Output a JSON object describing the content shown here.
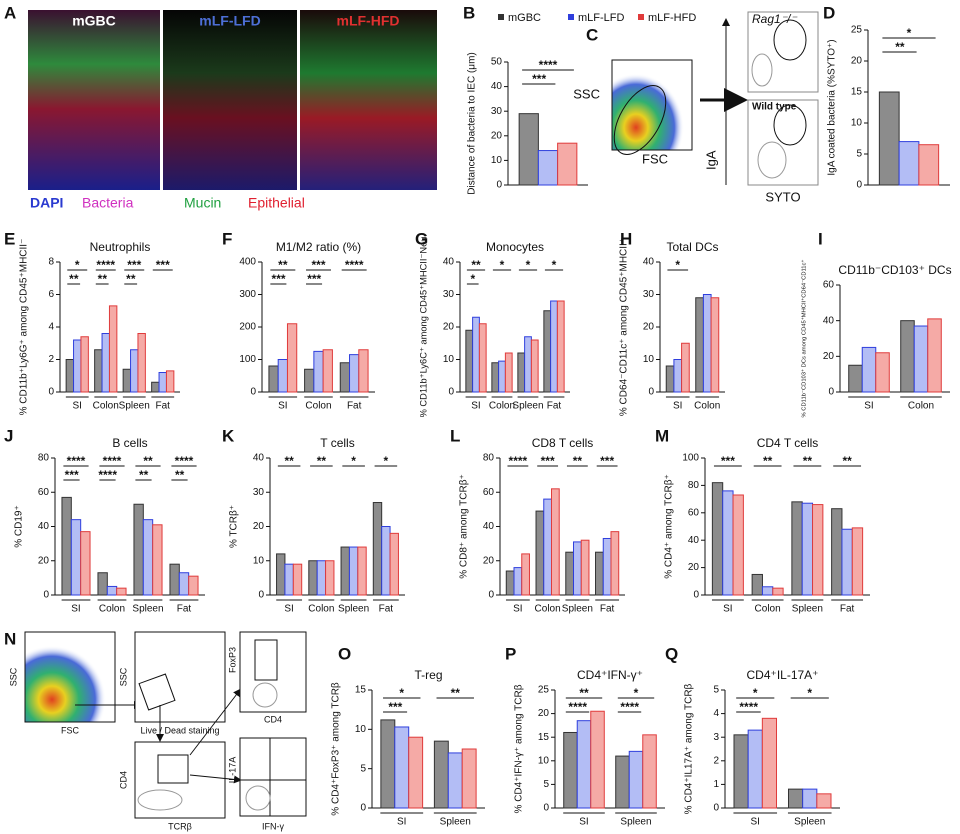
{
  "figure": {
    "A": {
      "letter": "A",
      "labels": [
        "mGBC",
        "mLF-LFD",
        "mLF-HFD"
      ],
      "stains": [
        "DAPI",
        "Bacteria",
        "Mucin",
        "Epithelial"
      ]
    },
    "C": {
      "letter": "C",
      "labels": [
        "SSC",
        "FSC",
        "Rag1⁻/⁻",
        "Wild type",
        "IgA",
        "SYTO"
      ]
    },
    "N": {
      "letter": "N",
      "labels": [
        "SSC",
        "FSC",
        "SSC",
        "Live / Dead staining",
        "FoxP3",
        "CD4",
        "CD4",
        "TCRβ",
        "IL-17A",
        "IFN-γ"
      ]
    }
  },
  "chart_data": [
    {
      "type": "bar",
      "panel": "B",
      "y_label": "Distance of bacteria to IEC (μm)",
      "categories": [
        null
      ],
      "legend": true,
      "series": [
        {
          "name": "mGBC",
          "color": "#8c8c8c",
          "values": [
            29
          ]
        },
        {
          "name": "mLF-LFD",
          "color": "#b3bdf5",
          "values": [
            14
          ]
        },
        {
          "name": "mLF-HFD",
          "color": "#f5aaa6",
          "values": [
            17
          ]
        }
      ],
      "ylim": [
        0,
        50
      ],
      "yticks": [
        0,
        10,
        20,
        30,
        40,
        50
      ],
      "annotations": [
        "****",
        "***"
      ]
    },
    {
      "type": "bar",
      "panel": "D",
      "y_label": "IgA coated bacteria (%SYTO⁺)",
      "categories": [
        null
      ],
      "series": [
        {
          "color": "#8c8c8c",
          "values": [
            15
          ]
        },
        {
          "color": "#b3bdf5",
          "values": [
            7
          ]
        },
        {
          "color": "#f5aaa6",
          "values": [
            6.5
          ]
        }
      ],
      "ylim": [
        0,
        25
      ],
      "yticks": [
        0,
        5,
        10,
        15,
        20,
        25
      ],
      "annotations": [
        "*",
        "**"
      ]
    },
    {
      "type": "bar",
      "panel": "E",
      "title": "Neutrophils",
      "y_label": "% CD11b⁺Ly6G⁺ among CD45⁺MHCII⁻",
      "categories": [
        "SI",
        "Colon",
        "Spleen",
        "Fat"
      ],
      "series": [
        {
          "color": "#8c8c8c",
          "values": [
            2,
            2.6,
            1.4,
            0.6
          ]
        },
        {
          "color": "#b3bdf5",
          "values": [
            3.2,
            3.6,
            2.6,
            1.2
          ]
        },
        {
          "color": "#f5aaa6",
          "values": [
            3.4,
            5.3,
            3.6,
            1.3
          ]
        }
      ],
      "ylim": [
        0,
        8
      ],
      "yticks": [
        0,
        2,
        4,
        6,
        8
      ],
      "annotations": [
        "*",
        "**",
        "****",
        "**",
        "***",
        "**",
        "***"
      ]
    },
    {
      "type": "bar",
      "panel": "F",
      "title": "M1/M2 ratio (%)",
      "categories": [
        "SI",
        "Colon",
        "Fat"
      ],
      "series": [
        {
          "color": "#8c8c8c",
          "values": [
            80,
            70,
            90
          ]
        },
        {
          "color": "#b3bdf5",
          "values": [
            100,
            125,
            115
          ]
        },
        {
          "color": "#f5aaa6",
          "values": [
            210,
            130,
            130
          ]
        }
      ],
      "ylim": [
        0,
        400
      ],
      "yticks": [
        0,
        100,
        200,
        300,
        400
      ],
      "annotations": [
        "**",
        "***",
        "***",
        "***",
        "****"
      ]
    },
    {
      "type": "bar",
      "panel": "G",
      "title": "Monocytes",
      "y_label": "% CD11b⁺Ly6C⁺ among CD45⁺MHCII⁻Neu",
      "categories": [
        "SI",
        "Colon",
        "Spleen",
        "Fat"
      ],
      "series": [
        {
          "color": "#8c8c8c",
          "values": [
            19,
            9,
            12,
            25
          ]
        },
        {
          "color": "#b3bdf5",
          "values": [
            23,
            9.5,
            17,
            28
          ]
        },
        {
          "color": "#f5aaa6",
          "values": [
            21,
            12,
            16,
            28
          ]
        }
      ],
      "ylim": [
        0,
        40
      ],
      "yticks": [
        0,
        10,
        20,
        30,
        40
      ],
      "annotations": [
        "**",
        "*",
        "*",
        "*",
        "*"
      ]
    },
    {
      "type": "bar",
      "panel": "H",
      "title": "Total DCs",
      "y_label": "% CD64⁻CD11c⁺ among CD45⁺MHCII⁺",
      "categories": [
        "SI",
        "Colon"
      ],
      "series": [
        {
          "color": "#8c8c8c",
          "values": [
            8,
            29
          ]
        },
        {
          "color": "#b3bdf5",
          "values": [
            10,
            30
          ]
        },
        {
          "color": "#f5aaa6",
          "values": [
            15,
            29
          ]
        }
      ],
      "ylim": [
        0,
        40
      ],
      "yticks": [
        0,
        10,
        20,
        30,
        40
      ],
      "annotations": [
        "*"
      ]
    },
    {
      "type": "bar",
      "panel": "I",
      "title": "CD11b⁻CD103⁺ DCs",
      "y_label": "% CD11b⁻CD103⁺ DCs among CD45⁺MHCII⁺CD64⁻CD11c⁺",
      "categories": [
        "SI",
        "Colon"
      ],
      "series": [
        {
          "color": "#8c8c8c",
          "values": [
            15,
            40
          ]
        },
        {
          "color": "#b3bdf5",
          "values": [
            25,
            37
          ]
        },
        {
          "color": "#f5aaa6",
          "values": [
            22,
            41
          ]
        }
      ],
      "ylim": [
        0,
        60
      ],
      "yticks": [
        0,
        20,
        40,
        60
      ],
      "annotations": []
    },
    {
      "type": "bar",
      "panel": "J",
      "title": "B cells",
      "y_label": "% CD19⁺",
      "categories": [
        "SI",
        "Colon",
        "Spleen",
        "Fat"
      ],
      "series": [
        {
          "color": "#8c8c8c",
          "values": [
            57,
            13,
            53,
            18
          ]
        },
        {
          "color": "#b3bdf5",
          "values": [
            44,
            5,
            44,
            13
          ]
        },
        {
          "color": "#f5aaa6",
          "values": [
            37,
            4,
            41,
            11
          ]
        }
      ],
      "ylim": [
        0,
        80
      ],
      "yticks": [
        0,
        20,
        40,
        60,
        80
      ],
      "annotations": [
        "****",
        "***",
        "****",
        "****",
        "**",
        "**",
        "****",
        "**"
      ]
    },
    {
      "type": "bar",
      "panel": "K",
      "title": "T cells",
      "y_label": "% TCRβ⁺",
      "categories": [
        "SI",
        "Colon",
        "Spleen",
        "Fat"
      ],
      "series": [
        {
          "color": "#8c8c8c",
          "values": [
            12,
            10,
            14,
            27
          ]
        },
        {
          "color": "#b3bdf5",
          "values": [
            9,
            10,
            14,
            20
          ]
        },
        {
          "color": "#f5aaa6",
          "values": [
            9,
            10,
            14,
            18
          ]
        }
      ],
      "ylim": [
        0,
        40
      ],
      "yticks": [
        0,
        10,
        20,
        30,
        40
      ],
      "annotations": [
        "**",
        "**",
        "*",
        "*"
      ]
    },
    {
      "type": "bar",
      "panel": "L",
      "title": "CD8 T cells",
      "y_label": "% CD8⁺ among TCRβ⁺",
      "categories": [
        "SI",
        "Colon",
        "Spleen",
        "Fat"
      ],
      "series": [
        {
          "color": "#8c8c8c",
          "values": [
            14,
            49,
            25,
            25
          ]
        },
        {
          "color": "#b3bdf5",
          "values": [
            16,
            56,
            31,
            33
          ]
        },
        {
          "color": "#f5aaa6",
          "values": [
            24,
            62,
            32,
            37
          ]
        }
      ],
      "ylim": [
        0,
        80
      ],
      "yticks": [
        0,
        20,
        40,
        60,
        80
      ],
      "annotations": [
        "****",
        "***",
        "**",
        "***"
      ]
    },
    {
      "type": "bar",
      "panel": "M",
      "title": "CD4 T cells",
      "y_label": "% CD4⁺ among TCRβ⁺",
      "categories": [
        "SI",
        "Colon",
        "Spleen",
        "Fat"
      ],
      "series": [
        {
          "color": "#8c8c8c",
          "values": [
            82,
            15,
            68,
            63
          ]
        },
        {
          "color": "#b3bdf5",
          "values": [
            76,
            6,
            67,
            48
          ]
        },
        {
          "color": "#f5aaa6",
          "values": [
            73,
            5,
            66,
            49
          ]
        }
      ],
      "ylim": [
        0,
        100
      ],
      "yticks": [
        0,
        20,
        40,
        60,
        80,
        100
      ],
      "annotations": [
        "***",
        "**",
        "**",
        "**"
      ]
    },
    {
      "type": "bar",
      "panel": "O",
      "title": "T-reg",
      "y_label": "% CD4⁺FoxP3⁺ among TCRβ",
      "categories": [
        "SI",
        "Spleen"
      ],
      "series": [
        {
          "color": "#8c8c8c",
          "values": [
            11.2,
            8.5
          ]
        },
        {
          "color": "#b3bdf5",
          "values": [
            10.3,
            7
          ]
        },
        {
          "color": "#f5aaa6",
          "values": [
            9,
            7.5
          ]
        }
      ],
      "ylim": [
        0,
        15
      ],
      "yticks": [
        0,
        5,
        10,
        15
      ],
      "annotations": [
        "*",
        "***",
        "**"
      ]
    },
    {
      "type": "bar",
      "panel": "P",
      "title": "CD4⁺IFN-γ⁺",
      "y_label": "% CD4⁺IFN-γ⁺ among TCRβ",
      "categories": [
        "SI",
        "Spleen"
      ],
      "series": [
        {
          "color": "#8c8c8c",
          "values": [
            16,
            11
          ]
        },
        {
          "color": "#b3bdf5",
          "values": [
            18.5,
            12
          ]
        },
        {
          "color": "#f5aaa6",
          "values": [
            20.5,
            15.5
          ]
        }
      ],
      "ylim": [
        0,
        25
      ],
      "yticks": [
        0,
        5,
        10,
        15,
        20,
        25
      ],
      "annotations": [
        "**",
        "****",
        "*",
        "****"
      ]
    },
    {
      "type": "bar",
      "panel": "Q",
      "title": "CD4⁺IL-17A⁺",
      "y_label": "% CD4⁺IL17A⁺ among TCRβ",
      "categories": [
        "SI",
        "Spleen"
      ],
      "series": [
        {
          "color": "#8c8c8c",
          "values": [
            3.1,
            0.8
          ]
        },
        {
          "color": "#b3bdf5",
          "values": [
            3.3,
            0.8
          ]
        },
        {
          "color": "#f5aaa6",
          "values": [
            3.8,
            0.6
          ]
        }
      ],
      "ylim": [
        0,
        5
      ],
      "yticks": [
        0,
        1,
        2,
        3,
        4,
        5
      ],
      "annotations": [
        "*",
        "****",
        "*"
      ]
    }
  ]
}
